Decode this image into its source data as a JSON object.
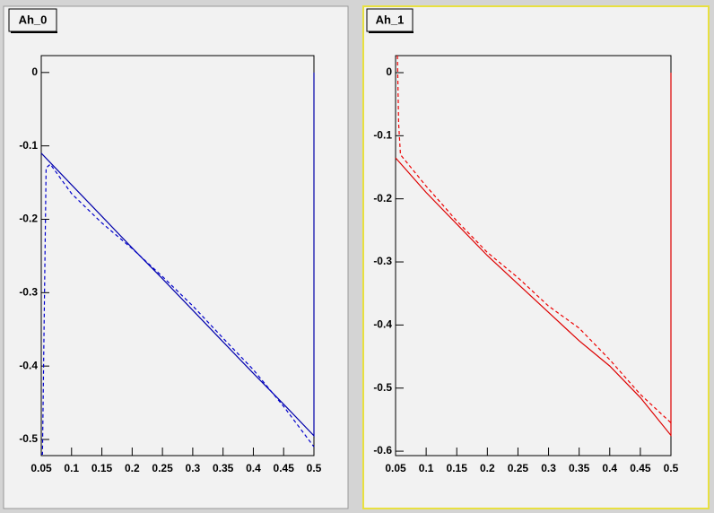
{
  "chart_data": [
    {
      "type": "line",
      "title": "Ah_0",
      "xlim": [
        0.05,
        0.5
      ],
      "ylim": [
        0.023,
        -0.522
      ],
      "xticks": [
        0.05,
        0.1,
        0.15,
        0.2,
        0.25,
        0.3,
        0.35,
        0.4,
        0.45,
        0.5
      ],
      "yticks": [
        0,
        -0.1,
        -0.2,
        -0.3,
        -0.4,
        -0.5
      ],
      "series": [
        {
          "color": "#0000aa",
          "style": "solid",
          "x": [
            0.05,
            0.1,
            0.15,
            0.2,
            0.25,
            0.3,
            0.35,
            0.4,
            0.45,
            0.5,
            0.5
          ],
          "values": [
            -0.11,
            -0.153,
            -0.196,
            -0.239,
            -0.281,
            -0.324,
            -0.367,
            -0.41,
            -0.452,
            -0.495,
            0
          ]
        },
        {
          "color": "#0000cc",
          "style": "dashed",
          "x": [
            0.05,
            0.052,
            0.058,
            0.065,
            0.1,
            0.15,
            0.2,
            0.25,
            0.3,
            0.35,
            0.4,
            0.45,
            0.5
          ],
          "values": [
            -0.52,
            -0.52,
            -0.13,
            -0.125,
            -0.165,
            -0.205,
            -0.24,
            -0.278,
            -0.318,
            -0.362,
            -0.405,
            -0.455,
            -0.51
          ]
        }
      ]
    },
    {
      "type": "line",
      "title": "Ah_1",
      "xlim": [
        0.05,
        0.5
      ],
      "ylim": [
        0.027,
        -0.607
      ],
      "xticks": [
        0.05,
        0.1,
        0.15,
        0.2,
        0.25,
        0.3,
        0.35,
        0.4,
        0.45,
        0.5
      ],
      "yticks": [
        0,
        -0.1,
        -0.2,
        -0.3,
        -0.4,
        -0.5,
        -0.6
      ],
      "series": [
        {
          "color": "#dd0000",
          "style": "solid",
          "x": [
            0.05,
            0.1,
            0.15,
            0.2,
            0.25,
            0.3,
            0.35,
            0.4,
            0.45,
            0.5,
            0.5
          ],
          "values": [
            -0.135,
            -0.19,
            -0.24,
            -0.29,
            -0.335,
            -0.38,
            -0.425,
            -0.465,
            -0.515,
            -0.575,
            0
          ]
        },
        {
          "color": "#ee0000",
          "style": "dashed",
          "x": [
            0.053,
            0.055,
            0.058,
            0.1,
            0.15,
            0.2,
            0.25,
            0.3,
            0.35,
            0.4,
            0.45,
            0.5
          ],
          "values": [
            0.027,
            -0.08,
            -0.13,
            -0.18,
            -0.235,
            -0.285,
            -0.325,
            -0.37,
            -0.405,
            -0.455,
            -0.51,
            -0.555
          ]
        }
      ]
    }
  ]
}
